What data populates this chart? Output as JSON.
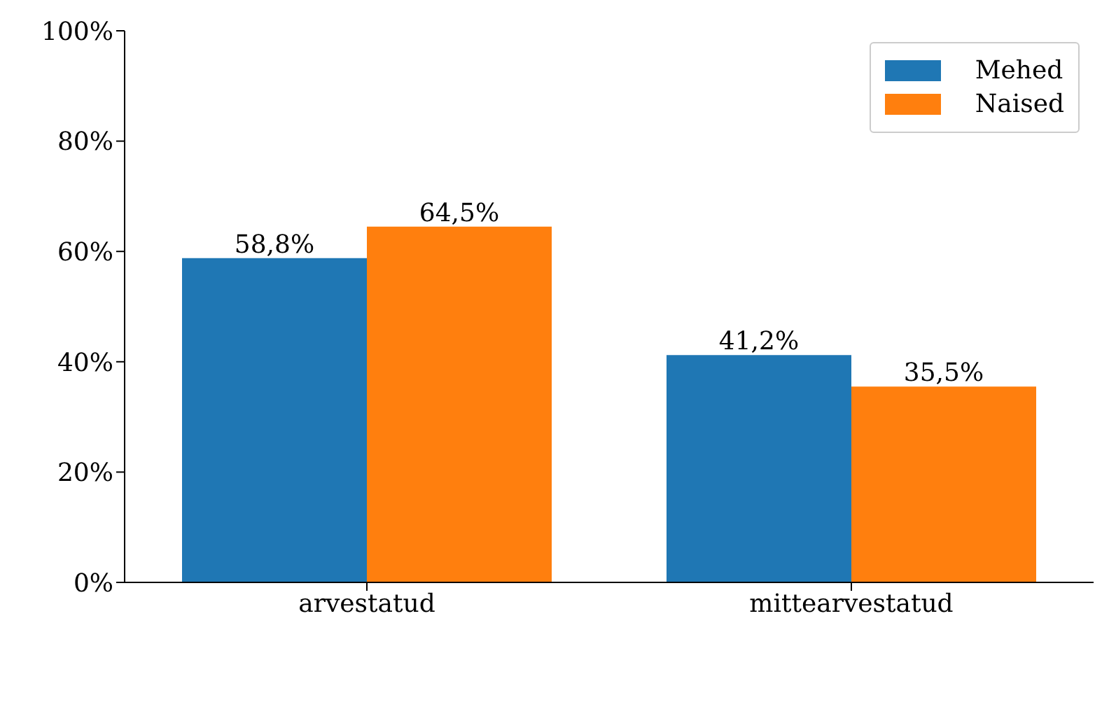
{
  "chart_data": {
    "type": "bar",
    "categories": [
      "arvestatud",
      "mittearvestatud"
    ],
    "series": [
      {
        "name": "Mehed",
        "color": "#1f77b4",
        "values": [
          58.8,
          41.2
        ],
        "value_labels": [
          "58,8%",
          "41,2%"
        ]
      },
      {
        "name": "Naised",
        "color": "#ff7f0e",
        "values": [
          64.5,
          35.5
        ],
        "value_labels": [
          "64,5%",
          "35,5%"
        ]
      }
    ],
    "ylim": [
      0,
      100
    ],
    "yticks": [
      {
        "value": 0,
        "label": "0%"
      },
      {
        "value": 20,
        "label": "20%"
      },
      {
        "value": 40,
        "label": "40%"
      },
      {
        "value": 60,
        "label": "60%"
      },
      {
        "value": 80,
        "label": "80%"
      },
      {
        "value": 100,
        "label": "100%"
      }
    ],
    "grid": false,
    "legend": "top right"
  }
}
